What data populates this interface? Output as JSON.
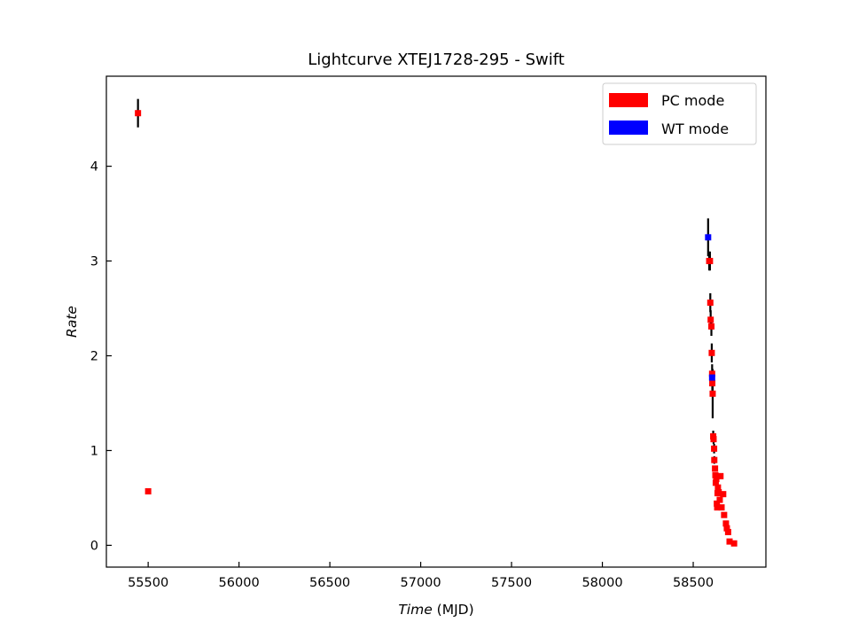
{
  "chart_data": {
    "type": "scatter",
    "title": "Lightcurve XTEJ1728-295 - Swift",
    "xlabel": "Time (MJD)",
    "xlabel_main": "Time ",
    "xlabel_unit": "(MJD)",
    "ylabel": "Rate",
    "xlim": [
      55270,
      58900
    ],
    "ylim": [
      -0.23,
      4.95
    ],
    "xticks": [
      55500,
      56000,
      56500,
      57000,
      57500,
      58000,
      58500
    ],
    "yticks": [
      0,
      1,
      2,
      3,
      4
    ],
    "grid": false,
    "legend_position": "top-right",
    "series": [
      {
        "name": "PC mode",
        "color": "#ff0000",
        "points": [
          {
            "x": 55444,
            "y": 4.56,
            "err": 0.15
          },
          {
            "x": 55500,
            "y": 0.57,
            "err": 0.02
          },
          {
            "x": 58588,
            "y": 3.0,
            "err": 0.1
          },
          {
            "x": 58592,
            "y": 3.0,
            "err": 0.1
          },
          {
            "x": 58594,
            "y": 2.56,
            "err": 0.1
          },
          {
            "x": 58596,
            "y": 2.38,
            "err": 0.1
          },
          {
            "x": 58600,
            "y": 2.31,
            "err": 0.1
          },
          {
            "x": 58602,
            "y": 2.03,
            "err": 0.1
          },
          {
            "x": 58604,
            "y": 1.81,
            "err": 0.1
          },
          {
            "x": 58605,
            "y": 1.71,
            "err": 0.1
          },
          {
            "x": 58607,
            "y": 1.6,
            "err": 0.26
          },
          {
            "x": 58610,
            "y": 1.15,
            "err": 0.06
          },
          {
            "x": 58612,
            "y": 1.12,
            "err": 0.05
          },
          {
            "x": 58615,
            "y": 1.02,
            "err": 0.05
          },
          {
            "x": 58616,
            "y": 0.9,
            "err": 0.04
          },
          {
            "x": 58620,
            "y": 0.81,
            "err": 0.03
          },
          {
            "x": 58622,
            "y": 0.74,
            "err": 0.03
          },
          {
            "x": 58624,
            "y": 0.66,
            "err": 0.03
          },
          {
            "x": 58627,
            "y": 0.7,
            "err": 0.03
          },
          {
            "x": 58630,
            "y": 0.44,
            "err": 0.02
          },
          {
            "x": 58632,
            "y": 0.4,
            "err": 0.02
          },
          {
            "x": 58634,
            "y": 0.55,
            "err": 0.02
          },
          {
            "x": 58636,
            "y": 0.61,
            "err": 0.02
          },
          {
            "x": 58640,
            "y": 0.56,
            "err": 0.02
          },
          {
            "x": 58646,
            "y": 0.48,
            "err": 0.02
          },
          {
            "x": 58650,
            "y": 0.73,
            "err": 0.03
          },
          {
            "x": 58656,
            "y": 0.4,
            "err": 0.02
          },
          {
            "x": 58665,
            "y": 0.54,
            "err": 0.02
          },
          {
            "x": 58670,
            "y": 0.32,
            "err": 0.02
          },
          {
            "x": 58680,
            "y": 0.23,
            "err": 0.02
          },
          {
            "x": 58685,
            "y": 0.18,
            "err": 0.02
          },
          {
            "x": 58692,
            "y": 0.14,
            "err": 0.01
          },
          {
            "x": 58700,
            "y": 0.04,
            "err": 0.01
          },
          {
            "x": 58725,
            "y": 0.02,
            "err": 0.01
          }
        ]
      },
      {
        "name": "WT mode",
        "color": "#0000ff",
        "points": [
          {
            "x": 58582,
            "y": 3.25,
            "err": 0.2
          },
          {
            "x": 58604,
            "y": 1.77,
            "err": 0.05
          }
        ]
      }
    ]
  }
}
